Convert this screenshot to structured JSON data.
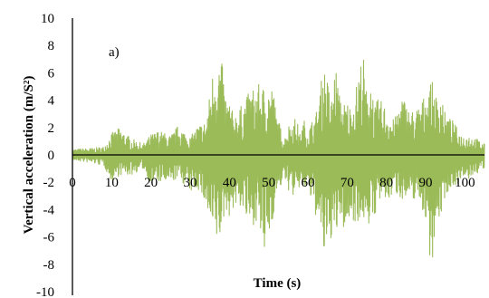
{
  "chart_data": {
    "type": "line",
    "annotation": "a)",
    "xlabel": "Time (s)",
    "ylabel": "Vertical acceleration (m/S²)",
    "xlim": [
      0,
      105
    ],
    "ylim": [
      -10,
      10
    ],
    "x_ticks": [
      0,
      10,
      20,
      30,
      40,
      50,
      60,
      70,
      80,
      90,
      100
    ],
    "y_ticks": [
      10,
      8,
      6,
      4,
      2,
      0,
      -2,
      -4,
      -6,
      -8,
      -10
    ],
    "grid": false,
    "legend": "none",
    "series": [
      {
        "color": "#9bbb59",
        "envelope_x": [
          0,
          5,
          8,
          10,
          12,
          15,
          18,
          20,
          22,
          25,
          27,
          30,
          32,
          34,
          35,
          36,
          37,
          38,
          39,
          40,
          41,
          43,
          45,
          47,
          49,
          51,
          52,
          54,
          55,
          57,
          58,
          59,
          60,
          61,
          62,
          63,
          64,
          65,
          66,
          67,
          68,
          69,
          70,
          71,
          72,
          73,
          74,
          75,
          76,
          77,
          78,
          80,
          82,
          84,
          86,
          88,
          90,
          91,
          92,
          93,
          94,
          95,
          97,
          99,
          101,
          103,
          105
        ],
        "envelope_max": [
          0.4,
          0.5,
          0.6,
          1.6,
          2.0,
          1.2,
          0.8,
          1.5,
          1.8,
          1.4,
          2.2,
          1.3,
          2.2,
          2.5,
          4.5,
          6.8,
          7.2,
          7.0,
          4.5,
          4.0,
          3.0,
          3.6,
          4.6,
          5.2,
          5.0,
          5.2,
          3.0,
          1.2,
          2.2,
          2.8,
          1.5,
          2.6,
          1.8,
          2.5,
          3.0,
          4.5,
          6.8,
          5.5,
          4.0,
          6.8,
          4.5,
          3.8,
          4.0,
          3.5,
          4.5,
          6.2,
          7.8,
          4.5,
          6.0,
          3.5,
          4.2,
          3.5,
          2.5,
          4.5,
          3.2,
          3.5,
          4.5,
          5.5,
          5.2,
          4.0,
          5.0,
          3.0,
          2.5,
          1.5,
          1.5,
          1.2,
          0.8
        ],
        "envelope_min": [
          -0.4,
          -0.6,
          -0.8,
          -2.0,
          -1.5,
          -1.5,
          -1.0,
          -2.2,
          -2.0,
          -2.2,
          -1.6,
          -2.8,
          -2.5,
          -3.8,
          -5.5,
          -6.3,
          -6.6,
          -6.0,
          -4.0,
          -4.5,
          -4.0,
          -3.8,
          -5.5,
          -4.8,
          -7.7,
          -4.8,
          -3.0,
          -1.8,
          -2.6,
          -3.3,
          -2.2,
          -2.8,
          -2.2,
          -3.8,
          -4.5,
          -6.0,
          -7.5,
          -7.8,
          -6.0,
          -7.0,
          -4.5,
          -5.5,
          -5.5,
          -4.5,
          -5.0,
          -4.8,
          -5.2,
          -4.0,
          -6.3,
          -4.5,
          -3.5,
          -3.6,
          -2.8,
          -3.2,
          -3.6,
          -3.0,
          -4.8,
          -7.5,
          -7.5,
          -5.0,
          -4.5,
          -3.0,
          -2.3,
          -2.0,
          -1.8,
          -1.4,
          -1.0
        ]
      }
    ]
  }
}
